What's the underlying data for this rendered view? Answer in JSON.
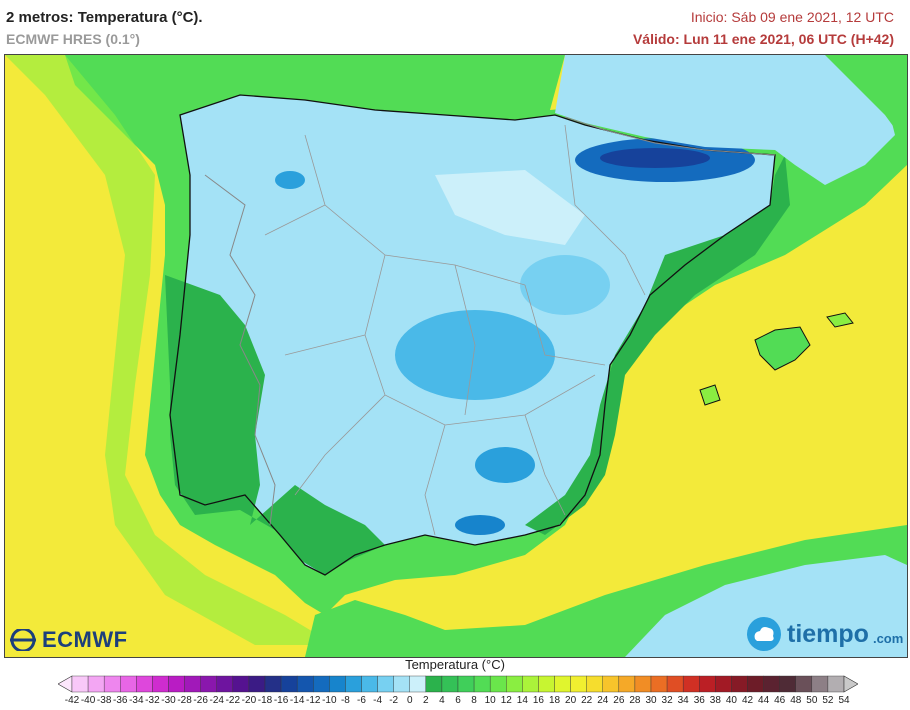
{
  "header": {
    "title": "2 metros: Temperatura (°C).",
    "model": "ECMWF HRES (0.1°)",
    "init": "Inicio: Sáb 09 ene 2021, 12 UTC",
    "valid": "Válido: Lun 11 ene 2021, 06 UTC (H+42)"
  },
  "logos": {
    "left": "ECMWF",
    "right": "tiempo",
    "right_suffix": ".com",
    "left_icon": "ecmwf-logo-icon",
    "right_icon": "cloud-logo-icon"
  },
  "map": {
    "region": "Iberian Peninsula and Balearic Islands",
    "variable": "2 m temperature"
  },
  "legend": {
    "title": "Temperatura (°C)",
    "labels": [
      "-42",
      "-40",
      "-38",
      "-36",
      "-34",
      "-32",
      "-30",
      "-28",
      "-26",
      "-24",
      "-22",
      "-20",
      "-18",
      "-16",
      "-14",
      "-12",
      "-10",
      "-8",
      "-6",
      "-4",
      "-2",
      "0",
      "2",
      "4",
      "6",
      "8",
      "10",
      "12",
      "14",
      "16",
      "18",
      "20",
      "22",
      "24",
      "26",
      "28",
      "30",
      "32",
      "34",
      "36",
      "38",
      "40",
      "42",
      "44",
      "46",
      "48",
      "50",
      "52",
      "54"
    ],
    "colors": [
      "#fde7fd",
      "#f8c8f8",
      "#f3a6f3",
      "#ee86ee",
      "#e866e6",
      "#de47dc",
      "#cf2ccf",
      "#b91cc4",
      "#a119b9",
      "#8a17ad",
      "#6e149f",
      "#551290",
      "#3b1b85",
      "#243088",
      "#16429b",
      "#1456ae",
      "#146bbe",
      "#1784cc",
      "#2aa0dc",
      "#4ab9e8",
      "#77d0f1",
      "#a4e2f6",
      "#ccf0fa",
      "#2bb24c",
      "#34c157",
      "#40cf5a",
      "#52dc55",
      "#6ae64b",
      "#8aee41",
      "#abf33a",
      "#c7f531",
      "#e0f52e",
      "#f1ef30",
      "#f6dd2d",
      "#f7c42b",
      "#f5a928",
      "#f18d25",
      "#eb6e24",
      "#e04e24",
      "#d03024",
      "#bb1f25",
      "#a21a25",
      "#861a26",
      "#6d1c28",
      "#5b2230",
      "#4f2b36",
      "#6a5059",
      "#8d7f86",
      "#b2aeb1",
      "#c9c9c9"
    ]
  }
}
